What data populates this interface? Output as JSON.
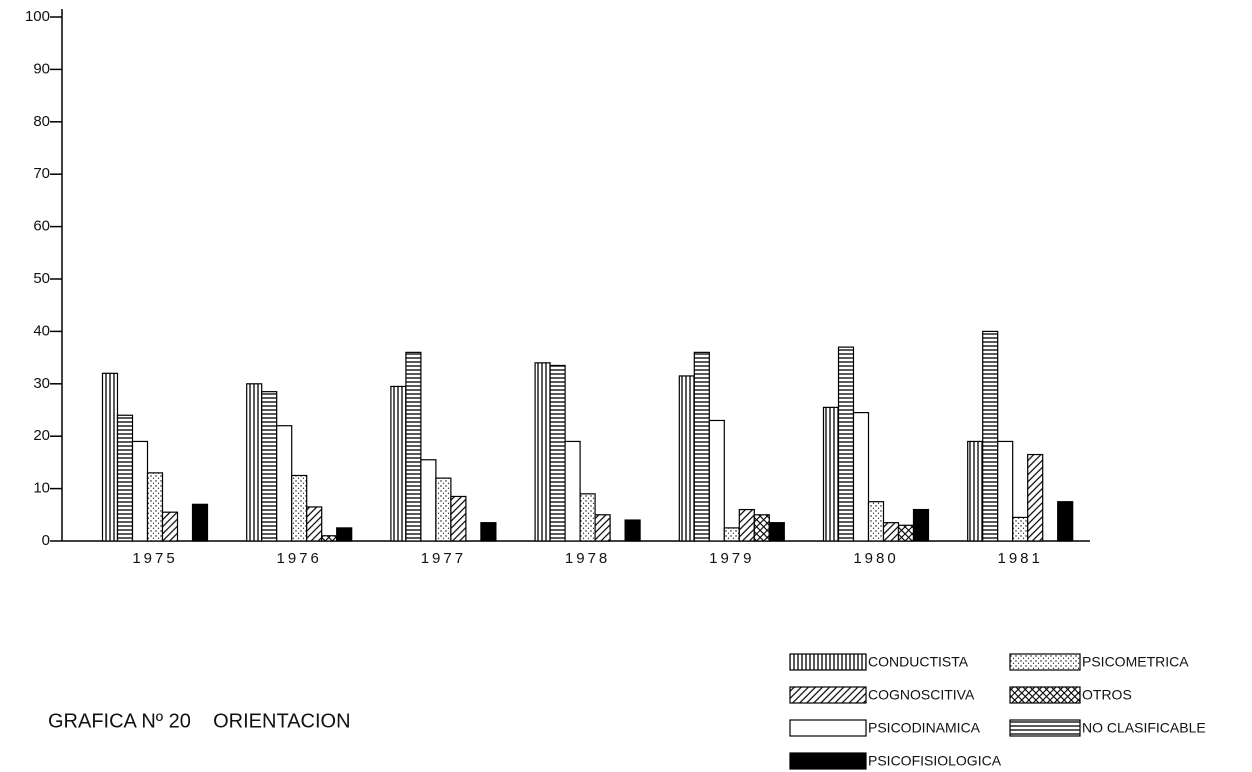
{
  "chart_data": {
    "type": "bar",
    "title": "GRAFICA Nº 20    ORIENTACION",
    "categories": [
      "1975",
      "1976",
      "1977",
      "1978",
      "1979",
      "1980",
      "1981"
    ],
    "series": [
      {
        "name": "CONDUCTISTA",
        "color": "#000000",
        "pattern": "vertical-lines",
        "values": [
          32,
          30,
          29.5,
          34,
          31.5,
          25.5,
          19
        ]
      },
      {
        "name": "NO CLASIFICABLE",
        "color": "#000000",
        "pattern": "horizontal-lines",
        "values": [
          24,
          28.5,
          36,
          33.5,
          36,
          37,
          40
        ]
      },
      {
        "name": "PSICODINAMICA",
        "color": "#000000",
        "pattern": "none",
        "values": [
          19,
          22,
          15.5,
          19,
          23,
          24.5,
          19
        ]
      },
      {
        "name": "PSICOMETRICA",
        "color": "#000000",
        "pattern": "dots",
        "values": [
          13,
          12.5,
          12,
          9,
          2.5,
          7.5,
          4.5
        ]
      },
      {
        "name": "COGNOSCITIVA",
        "color": "#000000",
        "pattern": "diagonal-lines",
        "values": [
          5.5,
          6.5,
          8.5,
          5,
          6,
          3.5,
          16.5
        ]
      },
      {
        "name": "OTROS",
        "color": "#000000",
        "pattern": "crosshatch",
        "values": [
          0,
          1,
          0,
          0,
          5,
          3,
          0
        ]
      },
      {
        "name": "PSICOFISIOLOGICA",
        "color": "#000000",
        "pattern": "solid",
        "values": [
          7,
          2.5,
          3.5,
          4,
          3.5,
          6,
          7.5
        ]
      }
    ],
    "ylim": [
      0,
      100
    ],
    "yticks": [
      0,
      10,
      20,
      30,
      40,
      50,
      60,
      70,
      80,
      90,
      100
    ],
    "grid": false,
    "legend": "bottom-right"
  }
}
